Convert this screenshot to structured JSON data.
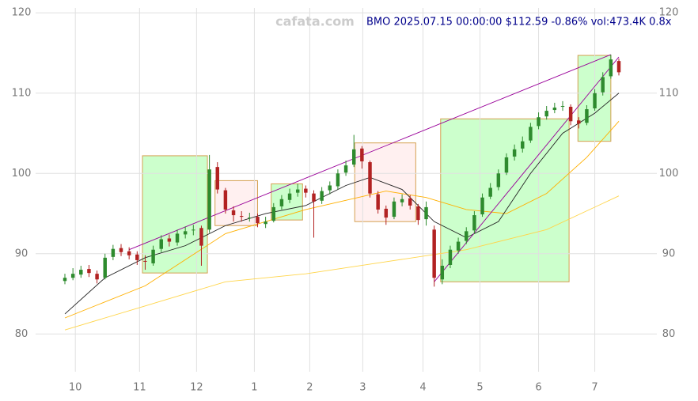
{
  "chart_data": {
    "type": "candlestick",
    "title": "BMO 2025.07.15 00:00:00 $112.59 -0.86% vol:473.4K 0.8x",
    "watermark": "cafata.com",
    "xlim": [
      0,
      69
    ],
    "xticks": [
      {
        "value": 1.3,
        "label": "10"
      },
      {
        "value": 9.3,
        "label": "11"
      },
      {
        "value": 16.4,
        "label": "12"
      },
      {
        "value": 23.6,
        "label": "1"
      },
      {
        "value": 30.5,
        "label": "2"
      },
      {
        "value": 37.1,
        "label": "3"
      },
      {
        "value": 44.6,
        "label": "4"
      },
      {
        "value": 51.7,
        "label": "5"
      },
      {
        "value": 59.0,
        "label": "6"
      },
      {
        "value": 66.0,
        "label": "7"
      }
    ],
    "ylim": [
      75.3,
      121.6
    ],
    "yticks": [
      80,
      90,
      100,
      110,
      120
    ],
    "grid": true,
    "up_color": "#2e8b2e",
    "down_color": "#b22222",
    "open": [
      86.6,
      87.0,
      87.4,
      88.1,
      87.5,
      87.0,
      89.6,
      90.7,
      90.3,
      89.9,
      89.1,
      88.8,
      90.6,
      91.9,
      91.4,
      92.4,
      92.9,
      93.2,
      93.0,
      100.8,
      97.9,
      95.4,
      94.7,
      94.4,
      94.6,
      93.7,
      94.1,
      95.9,
      96.7,
      97.6,
      98.1,
      97.5,
      96.6,
      97.9,
      98.4,
      100.1,
      101.1,
      103.1,
      101.4,
      97.4,
      95.6,
      94.6,
      96.4,
      96.9,
      95.9,
      94.3,
      93.0,
      86.8,
      88.6,
      90.4,
      91.6,
      92.9,
      94.9,
      97.1,
      98.3,
      100.1,
      102.1,
      103.1,
      104.1,
      105.9,
      107.1,
      107.9,
      108.3,
      108.3,
      106.6,
      106.3,
      108.1,
      110.1,
      112.1,
      114.0
    ],
    "high": [
      87.5,
      88.2,
      88.5,
      88.6,
      87.9,
      90.0,
      91.1,
      91.2,
      90.8,
      90.3,
      89.8,
      91.0,
      92.3,
      92.4,
      93.0,
      93.4,
      93.6,
      93.5,
      102.3,
      101.4,
      98.2,
      95.9,
      95.3,
      95.1,
      95.0,
      94.6,
      96.3,
      97.3,
      98.1,
      98.7,
      98.5,
      97.9,
      98.3,
      99.0,
      100.5,
      101.6,
      104.8,
      103.4,
      101.6,
      97.8,
      96.0,
      97.0,
      97.4,
      97.3,
      96.2,
      96.5,
      93.5,
      89.3,
      91.0,
      92.0,
      93.3,
      95.3,
      97.5,
      98.8,
      100.5,
      102.5,
      103.6,
      104.6,
      106.3,
      107.6,
      108.4,
      108.8,
      109.0,
      108.6,
      107.0,
      108.5,
      110.5,
      112.6,
      114.8,
      114.3
    ],
    "low": [
      86.2,
      86.7,
      87.0,
      87.1,
      86.3,
      86.8,
      89.2,
      89.7,
      89.3,
      88.6,
      88.0,
      88.5,
      90.2,
      90.9,
      91.0,
      91.9,
      92.3,
      88.5,
      92.6,
      97.5,
      95.0,
      94.0,
      94.0,
      94.0,
      93.3,
      93.2,
      93.9,
      95.5,
      96.3,
      97.1,
      97.0,
      92.0,
      96.2,
      97.4,
      98.0,
      99.7,
      100.8,
      100.6,
      97.0,
      95.0,
      93.6,
      94.3,
      95.9,
      95.5,
      93.6,
      93.5,
      85.9,
      86.2,
      88.2,
      90.0,
      91.2,
      92.5,
      94.6,
      96.8,
      97.9,
      99.8,
      101.6,
      102.6,
      103.8,
      105.5,
      106.7,
      107.5,
      107.8,
      106.0,
      105.6,
      106.0,
      107.8,
      109.7,
      111.8,
      112.2
    ],
    "close": [
      87.0,
      87.5,
      88.0,
      87.6,
      86.8,
      89.5,
      90.6,
      90.2,
      89.8,
      89.2,
      89.0,
      90.5,
      91.8,
      91.5,
      92.5,
      92.8,
      93.0,
      91.0,
      100.5,
      98.0,
      95.5,
      94.8,
      94.6,
      94.5,
      93.8,
      94.0,
      95.8,
      96.8,
      97.5,
      98.0,
      97.6,
      96.5,
      97.8,
      98.5,
      100.0,
      101.0,
      103.0,
      101.5,
      97.5,
      95.5,
      94.5,
      96.5,
      96.8,
      96.0,
      94.2,
      95.8,
      87.0,
      88.5,
      90.5,
      91.5,
      92.8,
      94.8,
      97.0,
      98.2,
      100.0,
      102.0,
      103.0,
      104.0,
      105.8,
      107.0,
      107.8,
      108.2,
      108.4,
      106.5,
      106.2,
      108.0,
      110.0,
      112.0,
      114.2,
      112.6
    ],
    "zones": [
      {
        "x": [
          9.66,
          17.75
        ],
        "y": [
          87.6,
          102.2
        ],
        "color": "#ccffcc"
      },
      {
        "x": [
          18.7,
          24.0
        ],
        "y": [
          93.5,
          99.1
        ],
        "color": "#fff0f0"
      },
      {
        "x": [
          25.7,
          29.6
        ],
        "y": [
          94.2,
          98.7
        ],
        "color": "#ccffcc"
      },
      {
        "x": [
          36.1,
          43.7
        ],
        "y": [
          94.0,
          103.8
        ],
        "color": "#fff0f0"
      },
      {
        "x": [
          46.8,
          62.8
        ],
        "y": [
          86.5,
          106.8
        ],
        "color": "#ccffcc"
      },
      {
        "x": [
          63.9,
          68.0
        ],
        "y": [
          104.0,
          114.7
        ],
        "color": "#ccffcc"
      }
    ],
    "lines": [
      {
        "color": "#ffd54a",
        "x": [
          0,
          10,
          20,
          30,
          40,
          50,
          60,
          69
        ],
        "values": [
          80.5,
          83.5,
          86.5,
          87.5,
          89.0,
          90.5,
          93.0,
          97.2
        ]
      },
      {
        "color": "#ffb000",
        "x": [
          0,
          10,
          20,
          30,
          40,
          45,
          50,
          55,
          60,
          65,
          69
        ],
        "values": [
          82.0,
          86.0,
          92.5,
          95.5,
          97.8,
          97.0,
          95.5,
          95.0,
          97.5,
          102.0,
          106.5
        ]
      },
      {
        "color": "#222222",
        "x": [
          0,
          5,
          10,
          15,
          20,
          25,
          30,
          35,
          38,
          42,
          46,
          50,
          54,
          58,
          62,
          66,
          69
        ],
        "values": [
          82.5,
          87.0,
          89.5,
          91.0,
          93.5,
          95.0,
          96.0,
          98.5,
          99.5,
          98.0,
          94.0,
          92.0,
          94.0,
          100.0,
          105.0,
          107.5,
          110.0
        ]
      },
      {
        "color": "#990099",
        "x": [
          8,
          68
        ],
        "values": [
          90.5,
          114.8
        ]
      },
      {
        "color": "#990099",
        "x": [
          46,
          69
        ],
        "values": [
          86.5,
          114.5
        ]
      }
    ]
  }
}
